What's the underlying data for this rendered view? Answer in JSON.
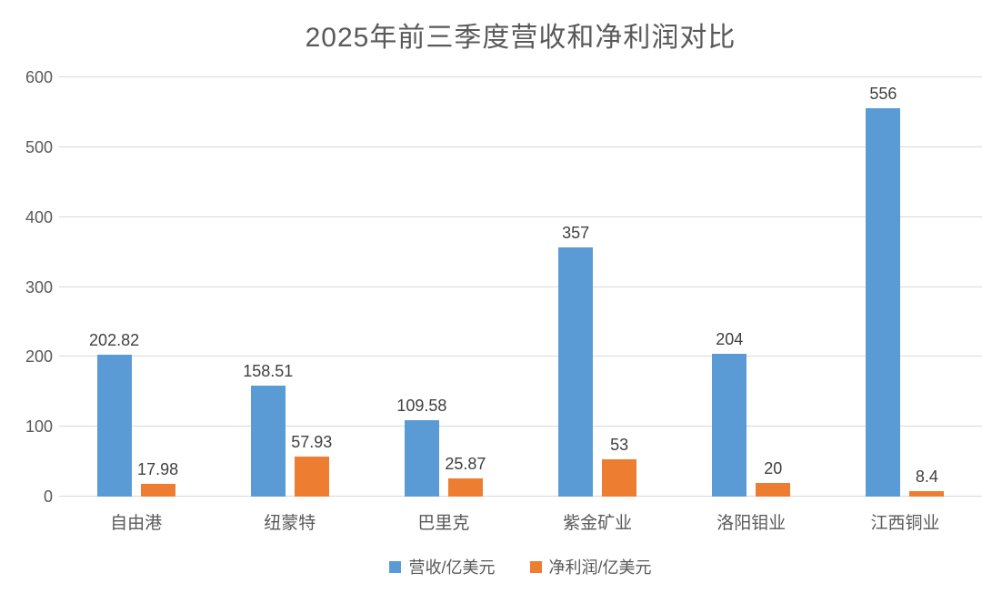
{
  "title": "2025年前三季度营收和净利润对比",
  "chart_data": {
    "type": "bar",
    "title": "2025年前三季度营收和净利润对比",
    "categories": [
      "自由港",
      "纽蒙特",
      "巴里克",
      "紫金矿业",
      "洛阳钼业",
      "江西铜业"
    ],
    "series": [
      {
        "name": "营收/亿美元",
        "color": "#5B9BD5",
        "values": [
          202.82,
          158.51,
          109.58,
          357,
          204,
          556
        ]
      },
      {
        "name": "净利润/亿美元",
        "color": "#ED7D31",
        "values": [
          17.98,
          57.93,
          25.87,
          53,
          20,
          8.4
        ]
      }
    ],
    "xlabel": "",
    "ylabel": "",
    "ylim": [
      0,
      600
    ],
    "yticks": [
      0,
      100,
      200,
      300,
      400,
      500,
      600
    ],
    "grid": true,
    "data_labels_shown": true,
    "legend_position": "bottom"
  },
  "colors": {
    "background": "#ffffff",
    "gridline": "#d9d9d9",
    "axis_text": "#595959",
    "title_text": "#595959",
    "data_label_text": "#404040",
    "series_revenue": "#5B9BD5",
    "series_net_profit": "#ED7D31"
  }
}
